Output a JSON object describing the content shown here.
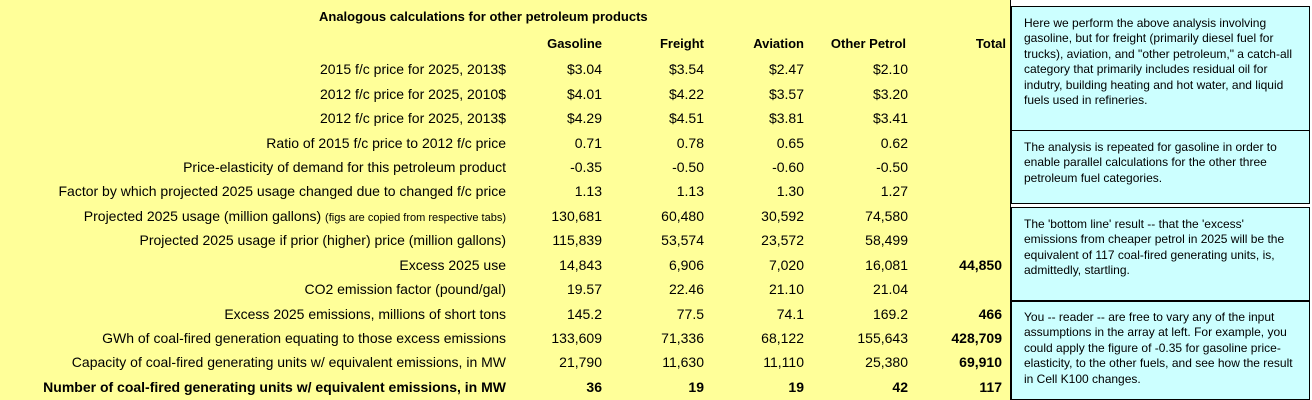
{
  "title": "Analogous calculations for other petroleum products",
  "columns": [
    "Gasoline",
    "Freight",
    "Aviation",
    "Other Petrol",
    "Total"
  ],
  "rows": [
    {
      "label": "2015 f/c price for 2025, 2013$",
      "note": "",
      "values": [
        "$3.04",
        "$3.54",
        "$2.47",
        "$2.10",
        ""
      ]
    },
    {
      "label": "2012 f/c price for 2025, 2010$",
      "note": "",
      "values": [
        "$4.01",
        "$4.22",
        "$3.57",
        "$3.20",
        ""
      ]
    },
    {
      "label": "2012 f/c price for 2025, 2013$",
      "note": "",
      "values": [
        "$4.29",
        "$4.51",
        "$3.81",
        "$3.41",
        ""
      ]
    },
    {
      "label": "Ratio of 2015 f/c price to 2012 f/c price",
      "note": "",
      "values": [
        "0.71",
        "0.78",
        "0.65",
        "0.62",
        ""
      ]
    },
    {
      "label": "Price-elasticity of demand for this petroleum product",
      "note": "",
      "values": [
        "-0.35",
        "-0.50",
        "-0.60",
        "-0.50",
        ""
      ]
    },
    {
      "label": "Factor by which projected 2025 usage changed due to changed f/c price",
      "note": "",
      "values": [
        "1.13",
        "1.13",
        "1.30",
        "1.27",
        ""
      ]
    },
    {
      "label": "Projected 2025 usage (million gallons)",
      "note": "(figs are copied from respective tabs)",
      "values": [
        "130,681",
        "60,480",
        "30,592",
        "74,580",
        ""
      ]
    },
    {
      "label": "Projected 2025 usage if prior (higher) price (million gallons)",
      "note": "",
      "values": [
        "115,839",
        "53,574",
        "23,572",
        "58,499",
        ""
      ]
    },
    {
      "label": "Excess 2025 use",
      "note": "",
      "values": [
        "14,843",
        "6,906",
        "7,020",
        "16,081",
        "44,850"
      ]
    },
    {
      "label": "CO2 emission factor (pound/gal)",
      "note": "",
      "values": [
        "19.57",
        "22.46",
        "21.10",
        "21.04",
        ""
      ]
    },
    {
      "label": "Excess 2025 emissions, millions of short tons",
      "note": "",
      "values": [
        "145.2",
        "77.5",
        "74.1",
        "169.2",
        "466"
      ]
    },
    {
      "label": "GWh of coal-fired generation equating to those excess emissions",
      "note": "",
      "values": [
        "133,609",
        "71,336",
        "68,122",
        "155,643",
        "428,709"
      ]
    },
    {
      "label": "Capacity of coal-fired generating units w/ equivalent emissions, in MW",
      "note": "",
      "values": [
        "21,790",
        "11,630",
        "11,110",
        "25,380",
        "69,910"
      ]
    },
    {
      "label": "Number of coal-fired generating units w/ equivalent emissions, in MW",
      "note": "",
      "values": [
        "36",
        "19",
        "19",
        "42",
        "117"
      ],
      "bold": true
    }
  ],
  "notes": [
    "Here we perform the above analysis involving gasoline, but for freight (primarily diesel fuel for trucks), aviation, and \"other petroleum,\" a catch-all category that primarily includes residual oil for indutry, building heating and hot water, and liquid fuels used in refineries.",
    "The analysis is repeated for gasoline in order to enable parallel calculations for the other three petroleum fuel categories.",
    "The 'bottom line' result -- that the 'excess' emissions from cheaper petrol in 2025 will be the equivalent of 117 coal-fired generating units, is, admittedly, startling.",
    "You -- reader -- are free to vary any of the input assumptions in the array at left. For example, you could apply the figure of -0.35 for gasoline price-elasticity, to the other fuels, and see how the result in Cell K100 changes."
  ],
  "colors": {
    "sheet_background": "#ffff99",
    "note_background": "#ccffff"
  }
}
